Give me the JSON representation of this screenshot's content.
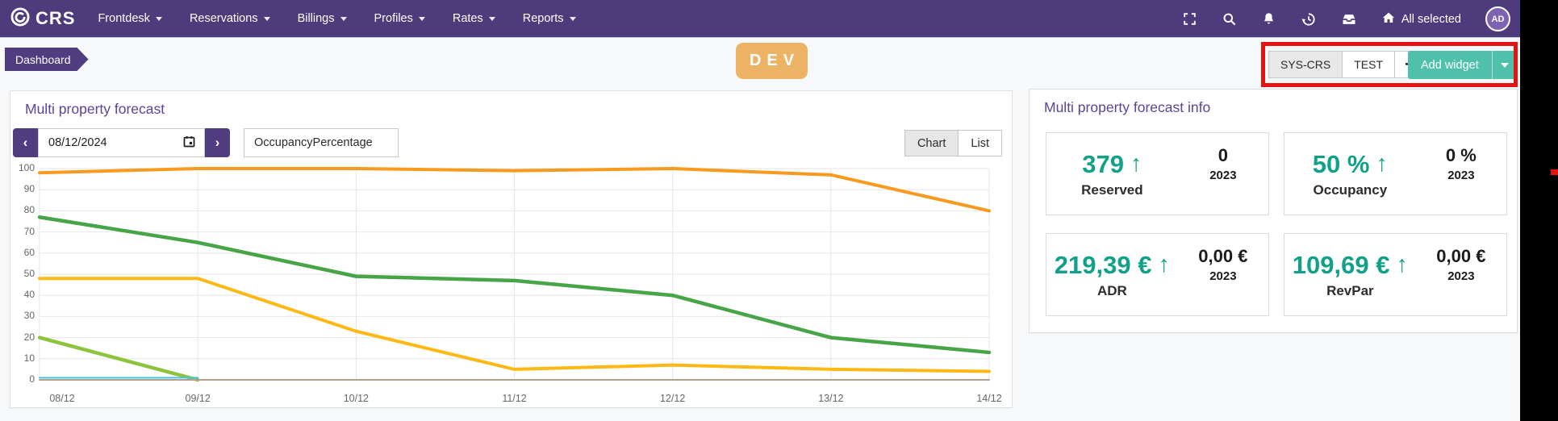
{
  "nav": {
    "logo_text": "CRS",
    "items": [
      {
        "id": "frontdesk",
        "label": "Frontdesk"
      },
      {
        "id": "reservations",
        "label": "Reservations"
      },
      {
        "id": "billings",
        "label": "Billings"
      },
      {
        "id": "profiles",
        "label": "Profiles"
      },
      {
        "id": "rates",
        "label": "Rates"
      },
      {
        "id": "reports",
        "label": "Reports"
      }
    ],
    "right": {
      "all_selected_label": "All selected",
      "avatar_initials": "AD",
      "icon_names": [
        "fullscreen-icon",
        "search-icon",
        "bell-icon",
        "history-icon",
        "inbox-icon",
        "home-icon"
      ]
    }
  },
  "breadcrumb": {
    "label": "Dashboard"
  },
  "env_badge": {
    "label": "DEV",
    "color": "#ecb364"
  },
  "workspace_tabs": {
    "tabs": [
      {
        "label": "SYS-CRS",
        "active": true
      },
      {
        "label": "TEST",
        "active": false
      }
    ],
    "add_tab_label": "+"
  },
  "add_widget": {
    "label": "Add widget",
    "color": "#4ec0ab"
  },
  "annotation": {
    "highlight_color": "#e51212"
  },
  "forecast_panel": {
    "title": "Multi property forecast",
    "date_value": "08/12/2024",
    "prev_label": "‹",
    "next_label": "›",
    "metric_selector_value": "OccupancyPercentage",
    "view_toggle": {
      "options": [
        "Chart",
        "List"
      ],
      "active": "Chart"
    }
  },
  "chart_data": {
    "type": "line",
    "title": "Multi property forecast",
    "x": [
      "08/12",
      "09/12",
      "10/12",
      "11/12",
      "12/12",
      "13/12",
      "14/12"
    ],
    "ylim": [
      0,
      100
    ],
    "ytick_step": 10,
    "grid": true,
    "legend": "none",
    "series": [
      {
        "name": "orange",
        "color": "#f79a1f",
        "width": 4,
        "values": [
          98,
          100,
          100,
          99,
          100,
          97,
          80
        ]
      },
      {
        "name": "dark-green",
        "color": "#47a447",
        "width": 4.5,
        "values": [
          77,
          65,
          49,
          47,
          40,
          20,
          13
        ]
      },
      {
        "name": "amber",
        "color": "#fdb813",
        "width": 4,
        "values": [
          48,
          48,
          23,
          5,
          7,
          5,
          4
        ]
      },
      {
        "name": "light-green",
        "color": "#8cc43e",
        "width": 4.5,
        "values": [
          20,
          0,
          null,
          null,
          null,
          null,
          null
        ]
      },
      {
        "name": "tan",
        "color": "#b3a18f",
        "width": 2,
        "values": [
          0,
          0,
          0,
          0,
          0,
          0,
          0
        ]
      },
      {
        "name": "cyan",
        "color": "#45c5e5",
        "width": 2,
        "values": [
          1,
          1,
          null,
          null,
          null,
          null,
          null
        ]
      }
    ]
  },
  "info_panel": {
    "title": "Multi property forecast info",
    "trend_arrow": "↑",
    "cards": [
      {
        "value": "379",
        "label": "Reserved",
        "prev_value": "0",
        "prev_year": "2023",
        "trend": "up"
      },
      {
        "value": "50 %",
        "label": "Occupancy",
        "prev_value": "0 %",
        "prev_year": "2023",
        "trend": "up"
      },
      {
        "value": "219,39 €",
        "label": "ADR",
        "prev_value": "0,00 €",
        "prev_year": "2023",
        "trend": "up"
      },
      {
        "value": "109,69 €",
        "label": "RevPar",
        "prev_value": "0,00 €",
        "prev_year": "2023",
        "trend": "up"
      }
    ]
  },
  "colors": {
    "nav_purple": "#4d3b7c",
    "accent_purple": "#4f3d80",
    "title_purple": "#5b4397",
    "teal": "#4ec0ab",
    "stat_teal": "#11a188",
    "annotation_red": "#e51212"
  }
}
